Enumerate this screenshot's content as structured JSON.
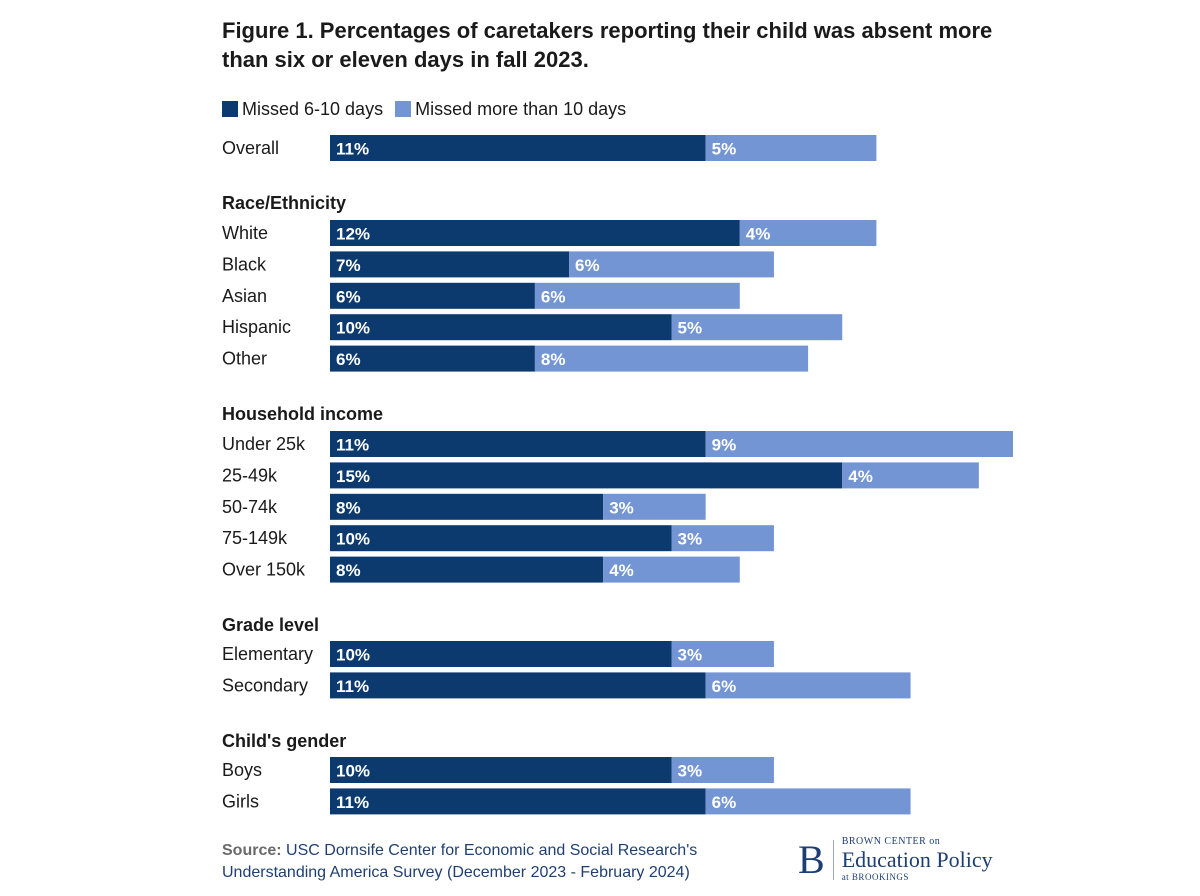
{
  "chart_data": {
    "type": "bar",
    "orientation": "horizontal",
    "stacked": true,
    "title": "Figure 1. Percentages of caretakers reporting their child was absent more than six or eleven days in fall 2023.",
    "legend": [
      "Missed 6-10 days",
      "Missed more than 10 days"
    ],
    "legend_position": "top-left",
    "colors": [
      "#0c3a6e",
      "#7395d3"
    ],
    "groups": [
      {
        "label": "",
        "rows": [
          {
            "label": "Overall",
            "values": [
              11,
              5
            ]
          }
        ]
      },
      {
        "label": "Race/Ethnicity",
        "rows": [
          {
            "label": "White",
            "values": [
              12,
              4
            ]
          },
          {
            "label": "Black",
            "values": [
              7,
              6
            ]
          },
          {
            "label": "Asian",
            "values": [
              6,
              6
            ]
          },
          {
            "label": "Hispanic",
            "values": [
              10,
              5
            ]
          },
          {
            "label": "Other",
            "values": [
              6,
              8
            ]
          }
        ]
      },
      {
        "label": "Household income",
        "rows": [
          {
            "label": "Under 25k",
            "values": [
              11,
              9
            ]
          },
          {
            "label": "25-49k",
            "values": [
              15,
              4
            ]
          },
          {
            "label": "50-74k",
            "values": [
              8,
              3
            ]
          },
          {
            "label": "75-149k",
            "values": [
              10,
              3
            ]
          },
          {
            "label": "Over 150k",
            "values": [
              8,
              4
            ]
          }
        ]
      },
      {
        "label": "Grade level",
        "rows": [
          {
            "label": "Elementary",
            "values": [
              10,
              3
            ]
          },
          {
            "label": "Secondary",
            "values": [
              11,
              6
            ]
          }
        ]
      },
      {
        "label": "Child's gender",
        "rows": [
          {
            "label": "Boys",
            "values": [
              10,
              3
            ]
          },
          {
            "label": "Girls",
            "values": [
              11,
              6
            ]
          }
        ]
      }
    ],
    "value_suffix": "%",
    "grid": false
  },
  "source": {
    "label": "Source:",
    "line1": "USC Dornsife Center for Economic and Social Research's",
    "line2": "Understanding America Survey (December 2023 - February 2024)"
  },
  "logo": {
    "mark": "B",
    "line1": "BROWN CENTER on",
    "line2": "Education Policy",
    "line3": "at BROOKINGS"
  }
}
